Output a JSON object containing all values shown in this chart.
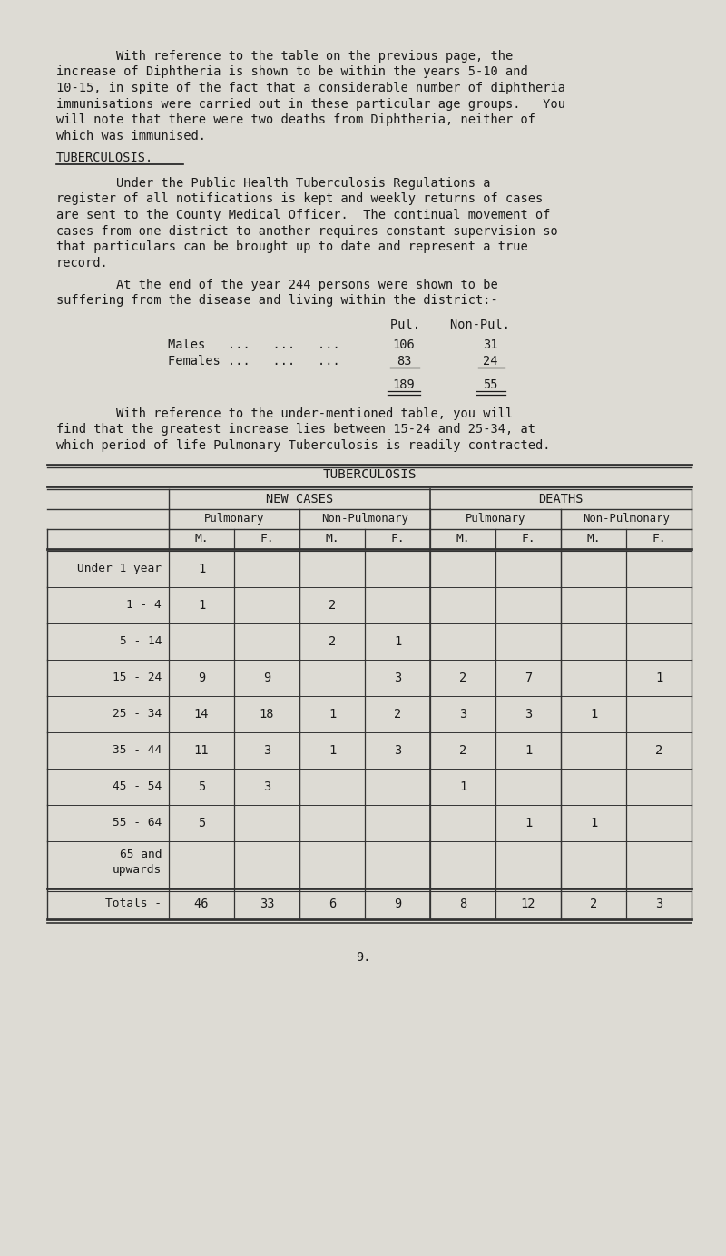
{
  "bg_color": "#dddbd4",
  "text_color": "#1a1a1a",
  "para1_lines": [
    "        With reference to the table on the previous page, the",
    "increase of Diphtheria is shown to be within the years 5-10 and",
    "10-15, in spite of the fact that a considerable number of diphtheria",
    "immunisations were carried out in these particular age groups.   You",
    "will note that there were two deaths from Diphtheria, neither of",
    "which was immunised."
  ],
  "heading_tuberculosis": "TUBERCULOSIS.",
  "para2_lines": [
    "        Under the Public Health Tuberculosis Regulations a",
    "register of all notifications is kept and weekly returns of cases",
    "are sent to the County Medical Officer.  The continual movement of",
    "cases from one district to another requires constant supervision so",
    "that particulars can be brought up to date and represent a true",
    "record."
  ],
  "para3_lines": [
    "        At the end of the year 244 persons were shown to be",
    "suffering from the disease and living within the district:-"
  ],
  "para4_lines": [
    "        With reference to the under-mentioned table, you will",
    "find that the greatest increase lies between 15-24 and 25-34, at",
    "which period of life Pulmonary Tuberculosis is readily contracted."
  ],
  "table_title": "TUBERCULOSIS",
  "col_headers_l2": [
    "Pulmonary",
    "Non-Pulmonary",
    "Pulmonary",
    "Non-Pulmonary"
  ],
  "col_headers_l3": [
    "M.",
    "F.",
    "M.",
    "F.",
    "M.",
    "F.",
    "M.",
    "F."
  ],
  "row_labels": [
    "Under 1 year",
    "1 - 4",
    "5 - 14",
    "15 - 24",
    "25 - 34",
    "35 - 44",
    "45 - 54",
    "55 - 64",
    "65 and\nupwards",
    "Totals -"
  ],
  "table_data": [
    [
      "1",
      "",
      "",
      "",
      "",
      "",
      "",
      ""
    ],
    [
      "1",
      "",
      "2",
      "",
      "",
      "",
      "",
      ""
    ],
    [
      "",
      "",
      "2",
      "1",
      "",
      "",
      "",
      ""
    ],
    [
      "9",
      "9",
      "",
      "3",
      "2",
      "7",
      "",
      "1"
    ],
    [
      "14",
      "18",
      "1",
      "2",
      "3",
      "3",
      "1",
      ""
    ],
    [
      "11",
      "3",
      "1",
      "3",
      "2",
      "1",
      "",
      "2"
    ],
    [
      "5",
      "3",
      "",
      "",
      "1",
      "",
      "",
      ""
    ],
    [
      "5",
      "",
      "",
      "",
      "",
      "1",
      "1",
      ""
    ],
    [
      "",
      "",
      "",
      "",
      "",
      "",
      "",
      ""
    ],
    [
      "46",
      "33",
      "6",
      "9",
      "8",
      "12",
      "2",
      "3"
    ]
  ],
  "page_number": "9."
}
